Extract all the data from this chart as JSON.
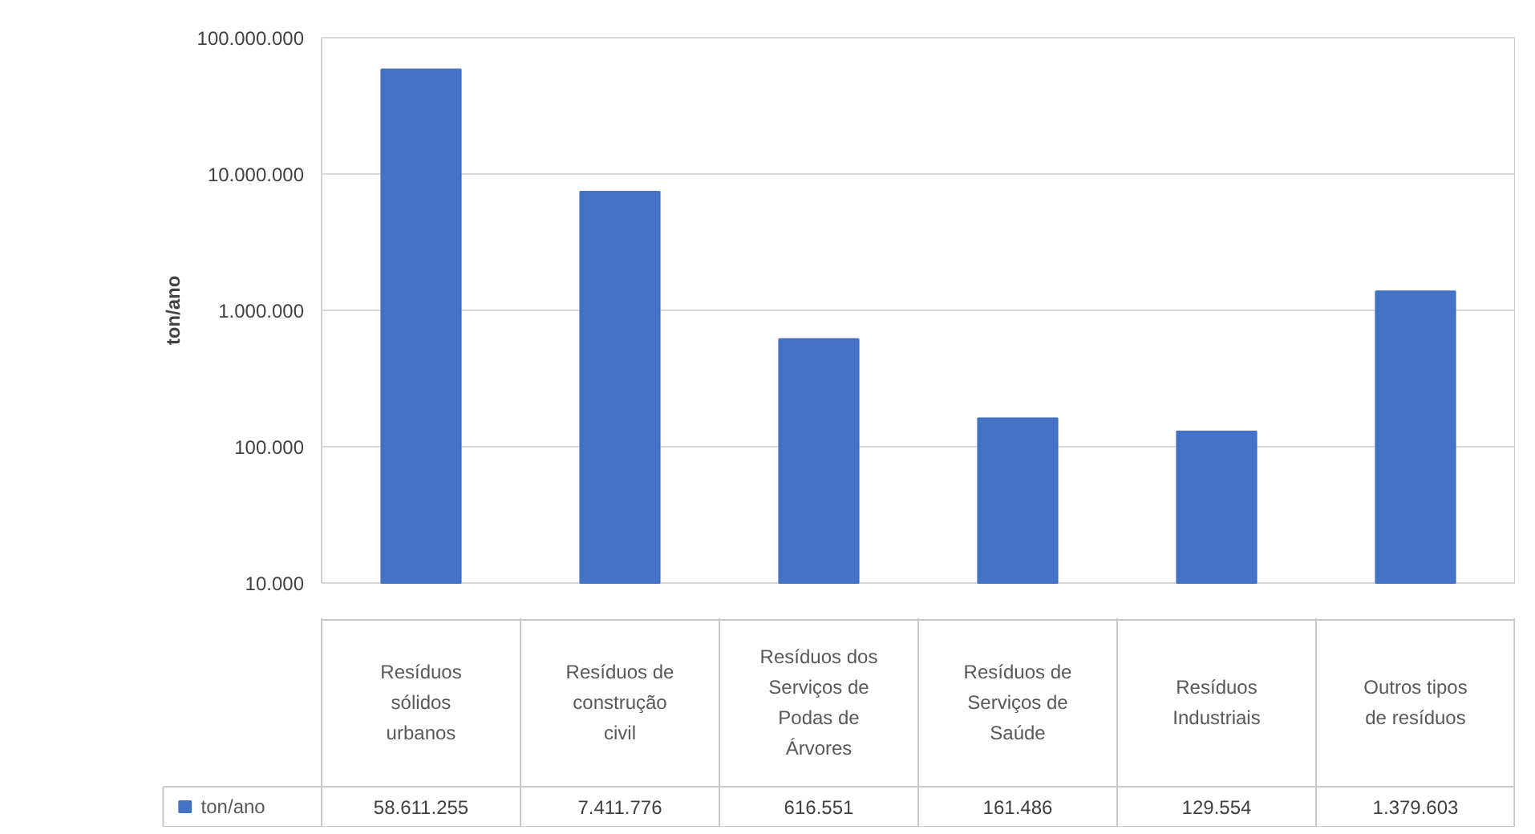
{
  "chart_data": {
    "type": "bar",
    "ylabel": "ton/ano",
    "log": true,
    "grid": "y",
    "categories": [
      "Resíduos sólidos urbanos",
      "Resíduos de construção civil",
      "Resíduos dos Serviços de Podas de Árvores",
      "Resíduos de Serviços de Saúde",
      "Resíduos Industriais",
      "Outros tipos de resíduos"
    ],
    "series": [
      {
        "name": "ton/ano",
        "color": "#4472c4",
        "values": [
          58611255,
          7411776,
          616551,
          161486,
          129554,
          1379603
        ],
        "value_labels": [
          "58.611.255",
          "7.411.776",
          "616.551",
          "161.486",
          "129.554",
          "1.379.603"
        ]
      }
    ],
    "ylim": [
      10000,
      100000000
    ],
    "yticks": [
      {
        "value": 10000,
        "label": "10.000"
      },
      {
        "value": 100000,
        "label": "100.000"
      },
      {
        "value": 1000000,
        "label": "1.000.000"
      },
      {
        "value": 10000000,
        "label": "10.000.000"
      },
      {
        "value": 100000000,
        "label": "100.000.000"
      }
    ]
  }
}
